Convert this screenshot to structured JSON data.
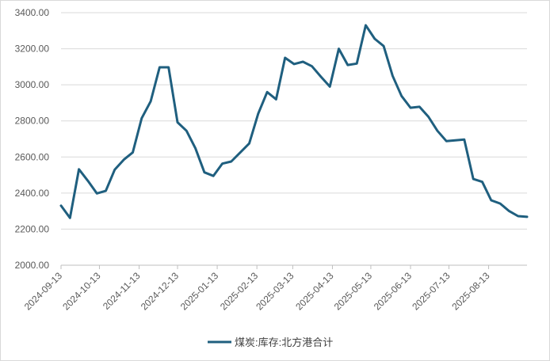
{
  "chart_data": {
    "type": "line",
    "title": "",
    "xlabel": "",
    "ylabel": "",
    "ylim": [
      2000,
      3400
    ],
    "y_ticks": [
      "2000.00",
      "2200.00",
      "2400.00",
      "2600.00",
      "2800.00",
      "3000.00",
      "3200.00",
      "3400.00"
    ],
    "x_ticks": [
      "2024-09-13",
      "2024-10-13",
      "2024-11-13",
      "2024-12-13",
      "2025-01-13",
      "2025-02-13",
      "2025-03-13",
      "2025-04-13",
      "2025-05-13",
      "2025-06-13",
      "2025-07-13",
      "2025-08-13"
    ],
    "grid": true,
    "legend_position": "bottom",
    "series": [
      {
        "name": "煤炭:库存:北方港合计",
        "color": "#1f5f7f",
        "points": [
          [
            "2024-09-13",
            2330
          ],
          [
            "2024-09-20",
            2262
          ],
          [
            "2024-09-27",
            2532
          ],
          [
            "2024-10-04",
            2468
          ],
          [
            "2024-10-11",
            2398
          ],
          [
            "2024-10-18",
            2412
          ],
          [
            "2024-10-25",
            2530
          ],
          [
            "2024-11-01",
            2585
          ],
          [
            "2024-11-08",
            2625
          ],
          [
            "2024-11-15",
            2815
          ],
          [
            "2024-11-22",
            2908
          ],
          [
            "2024-11-29",
            3097
          ],
          [
            "2024-12-06",
            3097
          ],
          [
            "2024-12-13",
            2792
          ],
          [
            "2024-12-20",
            2745
          ],
          [
            "2024-12-27",
            2648
          ],
          [
            "2025-01-03",
            2515
          ],
          [
            "2025-01-10",
            2495
          ],
          [
            "2025-01-17",
            2563
          ],
          [
            "2025-01-24",
            2575
          ],
          [
            "2025-01-31",
            2625
          ],
          [
            "2025-02-07",
            2675
          ],
          [
            "2025-02-14",
            2840
          ],
          [
            "2025-02-21",
            2960
          ],
          [
            "2025-02-28",
            2920
          ],
          [
            "2025-03-07",
            3150
          ],
          [
            "2025-03-14",
            3115
          ],
          [
            "2025-03-21",
            3128
          ],
          [
            "2025-03-28",
            3103
          ],
          [
            "2025-04-04",
            3045
          ],
          [
            "2025-04-11",
            2990
          ],
          [
            "2025-04-18",
            3200
          ],
          [
            "2025-04-25",
            3110
          ],
          [
            "2025-05-02",
            3118
          ],
          [
            "2025-05-09",
            3330
          ],
          [
            "2025-05-16",
            3255
          ],
          [
            "2025-05-23",
            3215
          ],
          [
            "2025-05-30",
            3050
          ],
          [
            "2025-06-06",
            2938
          ],
          [
            "2025-06-13",
            2873
          ],
          [
            "2025-06-20",
            2878
          ],
          [
            "2025-06-27",
            2823
          ],
          [
            "2025-07-04",
            2745
          ],
          [
            "2025-07-11",
            2688
          ],
          [
            "2025-07-18",
            2692
          ],
          [
            "2025-07-25",
            2697
          ],
          [
            "2025-08-01",
            2478
          ],
          [
            "2025-08-08",
            2462
          ],
          [
            "2025-08-15",
            2360
          ],
          [
            "2025-08-22",
            2342
          ],
          [
            "2025-08-29",
            2300
          ],
          [
            "2025-09-05",
            2272
          ],
          [
            "2025-09-12",
            2268
          ]
        ]
      }
    ]
  }
}
